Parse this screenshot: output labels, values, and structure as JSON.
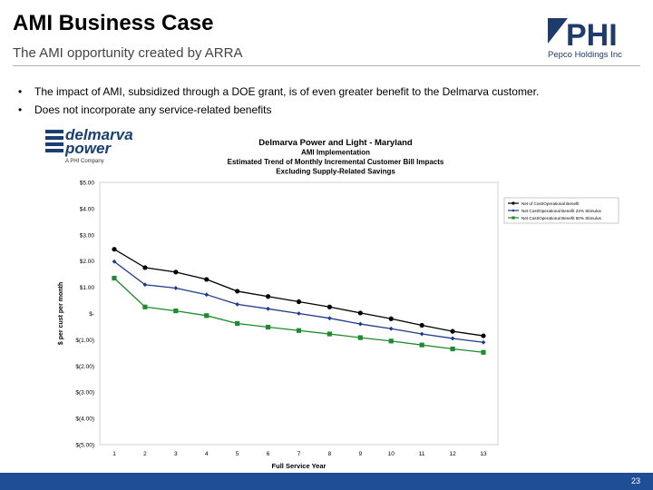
{
  "slide": {
    "title": "AMI Business Case",
    "subtitle": "The AMI opportunity created by ARRA",
    "bullets": [
      "The impact of AMI, subsidized through a DOE grant, is of even greater benefit to the Delmarva customer.",
      "Does not incorporate any service-related benefits"
    ],
    "page_number": "23"
  },
  "logo": {
    "mark": "PHI",
    "text": "Pepco Holdings Inc"
  },
  "brand": {
    "name_line1": "delmarva",
    "name_line2": "power",
    "tagline": "A PHI Company"
  },
  "colors": {
    "footer": "#1f4e96",
    "logo": "#1f3b6b",
    "brand": "#1a3f73",
    "series1": "#000000",
    "series2": "#1f3b8f",
    "series3": "#1e8c2e"
  },
  "chart_data": {
    "type": "line",
    "title_lines": [
      "Delmarva Power and Light - Maryland",
      "AMI Implementation",
      "Estimated Trend of Monthly Incremental Customer Bill Impacts",
      "Excluding Supply-Related Savings"
    ],
    "xlabel": "Full Service Year",
    "ylabel": "$ per cust per month",
    "x": [
      1,
      2,
      3,
      4,
      5,
      6,
      7,
      8,
      9,
      10,
      11,
      12,
      13
    ],
    "ylim": [
      -5,
      5
    ],
    "ytick_labels": [
      "$5.00",
      "$4.00",
      "$3.00",
      "$2.00",
      "$1.00",
      "$-",
      "$(1.00)",
      "$(2.00)",
      "$(3.00)",
      "$(4.00)",
      "$(5.00)"
    ],
    "grid": false,
    "legend_position": "right",
    "series": [
      {
        "name": "Net of Cost/Operational Benefit",
        "marker": "circle",
        "color": "#000000",
        "values": [
          2.45,
          1.75,
          1.58,
          1.3,
          0.85,
          0.65,
          0.45,
          0.25,
          0.02,
          -0.2,
          -0.45,
          -0.68,
          -0.85
        ]
      },
      {
        "name": "Net Cost/Operational Benefit 24% Stimulus",
        "marker": "diamond",
        "color": "#1f3b8f",
        "values": [
          1.98,
          1.1,
          0.97,
          0.72,
          0.35,
          0.18,
          0.0,
          -0.18,
          -0.4,
          -0.58,
          -0.78,
          -0.95,
          -1.1
        ]
      },
      {
        "name": "Net Cost/Operational Benefit 50% Stimulus",
        "marker": "square",
        "color": "#1e8c2e",
        "values": [
          1.35,
          0.25,
          0.1,
          -0.08,
          -0.38,
          -0.52,
          -0.65,
          -0.78,
          -0.92,
          -1.05,
          -1.2,
          -1.35,
          -1.48
        ]
      }
    ]
  }
}
